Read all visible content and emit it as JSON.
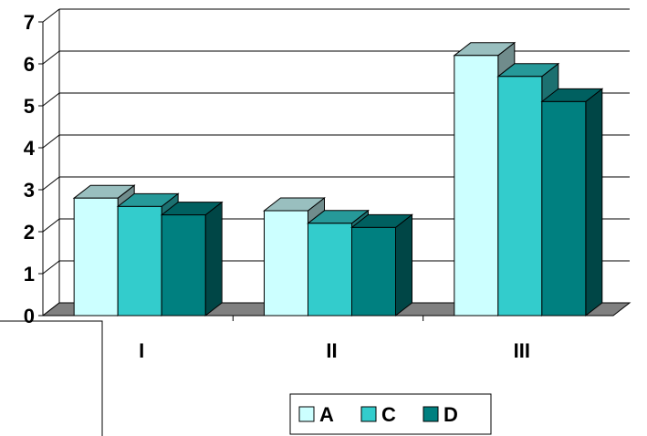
{
  "chart_data": {
    "type": "bar",
    "style": "3d-clustered-column",
    "categories": [
      "I",
      "II",
      "III"
    ],
    "series": [
      {
        "name": "A",
        "values": [
          2.8,
          2.5,
          6.2
        ],
        "color": "#CCFFFF"
      },
      {
        "name": "C",
        "values": [
          2.6,
          2.2,
          5.7
        ],
        "color": "#33CCCC"
      },
      {
        "name": "D",
        "values": [
          2.4,
          2.1,
          5.1
        ],
        "color": "#008080"
      }
    ],
    "y_ticks": [
      "0",
      "1",
      "2",
      "3",
      "4",
      "5",
      "6",
      "7"
    ],
    "ylim": [
      0,
      7
    ],
    "grid": true,
    "legend_position": "bottom-right",
    "colors": {
      "floor": "#808080",
      "gridline": "#000000",
      "wall": "#ffffff"
    }
  }
}
